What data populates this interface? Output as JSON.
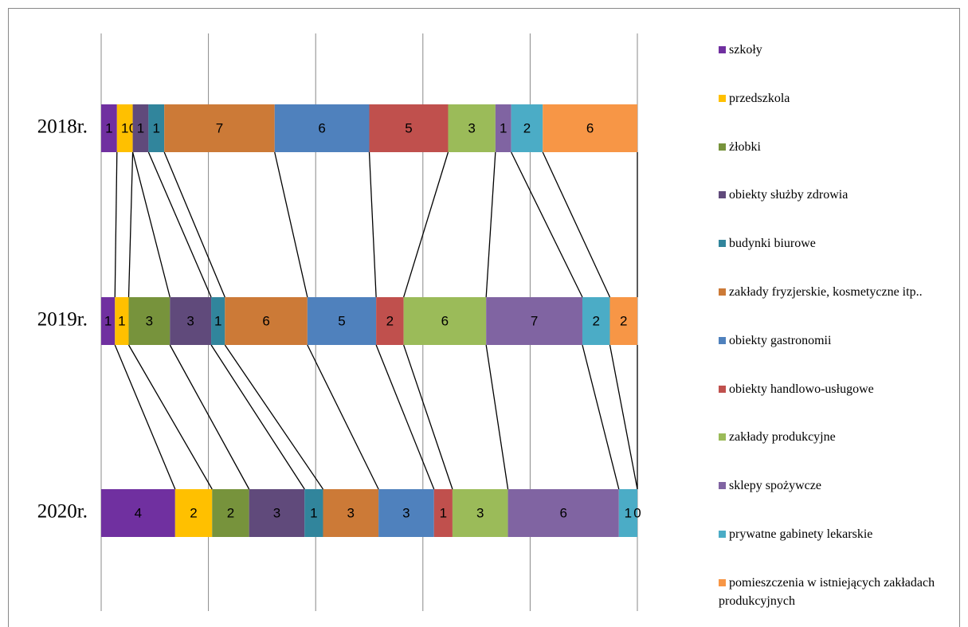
{
  "chart_data": {
    "type": "stacked_bar_100",
    "categories": [
      "2018r.",
      "2019r.",
      "2020r."
    ],
    "series": [
      {
        "name": "szkoły",
        "color": "#7030a0",
        "values": [
          1,
          1,
          4
        ]
      },
      {
        "name": "przedszkola",
        "color": "#ffc000",
        "values": [
          1,
          1,
          2
        ]
      },
      {
        "name": "żłobki",
        "color": "#77933c",
        "values": [
          0,
          3,
          2
        ]
      },
      {
        "name": "obiekty służby zdrowia",
        "color": "#604a7b",
        "values": [
          1,
          3,
          3
        ]
      },
      {
        "name": "budynki biurowe",
        "color": "#31859c",
        "values": [
          1,
          1,
          1
        ]
      },
      {
        "name": "zakłady fryzjerskie, kosmetyczne itp..",
        "color": "#cc7a37",
        "values": [
          7,
          6,
          3
        ]
      },
      {
        "name": "obiekty gastronomii",
        "color": "#4f81bd",
        "values": [
          6,
          5,
          3
        ]
      },
      {
        "name": "obiekty handlowo-usługowe",
        "color": "#c0504d",
        "values": [
          5,
          2,
          1
        ]
      },
      {
        "name": "zakłady produkcyjne",
        "color": "#9bbb59",
        "values": [
          3,
          6,
          3
        ]
      },
      {
        "name": "sklepy spożywcze",
        "color": "#8064a2",
        "values": [
          1,
          7,
          6
        ]
      },
      {
        "name": "prywatne gabinety lekarskie",
        "color": "#4bacc6",
        "values": [
          2,
          2,
          1
        ]
      },
      {
        "name": "pomieszczenia w istniejących zakładach produkcyjnych",
        "color": "#f79646",
        "values": [
          6,
          2,
          0
        ]
      }
    ],
    "xlim": [
      0,
      1
    ],
    "xticks": [
      0,
      0.2,
      0.4,
      0.6,
      0.8,
      1
    ],
    "grid": true,
    "legend": "right"
  }
}
